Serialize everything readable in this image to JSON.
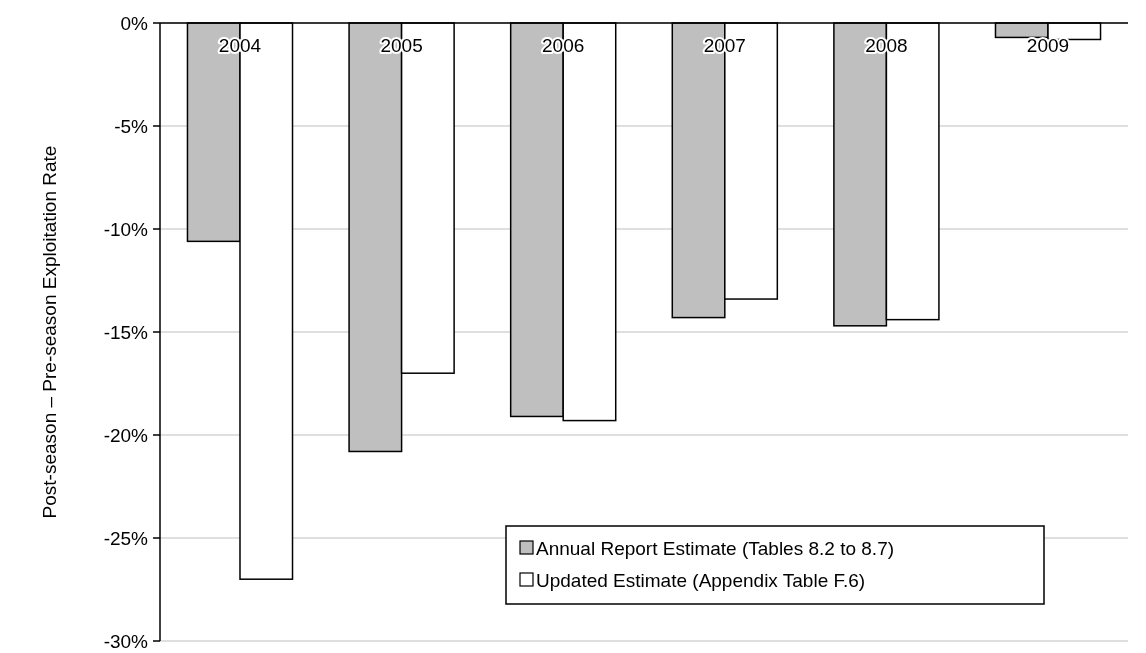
{
  "chart_data": {
    "type": "bar",
    "categories": [
      "2004",
      "2005",
      "2006",
      "2007",
      "2008",
      "2009"
    ],
    "ylabel": "Post-season – Pre-season Exploitation Rate",
    "series": [
      {
        "name": "Annual Report Estimate (Tables 8.2 to 8.7)",
        "color": "#bfbfbf",
        "values": [
          -10.6,
          -20.8,
          -19.1,
          -14.3,
          -14.7,
          -0.7
        ]
      },
      {
        "name": "Updated Estimate (Appendix Table F.6)",
        "color": "#ffffff",
        "values": [
          -27.0,
          -17.0,
          -19.3,
          -13.4,
          -14.4,
          -0.8
        ]
      }
    ],
    "ylim": [
      -30,
      0
    ],
    "yticks": [
      {
        "value": 0,
        "label": "0%"
      },
      {
        "value": -5,
        "label": "-5%"
      },
      {
        "value": -10,
        "label": "-10%"
      },
      {
        "value": -15,
        "label": "-15%"
      },
      {
        "value": -20,
        "label": "-20%"
      },
      {
        "value": -25,
        "label": "-25%"
      },
      {
        "value": -30,
        "label": "-30%"
      }
    ],
    "grid": "y",
    "legend": "bottom right"
  }
}
